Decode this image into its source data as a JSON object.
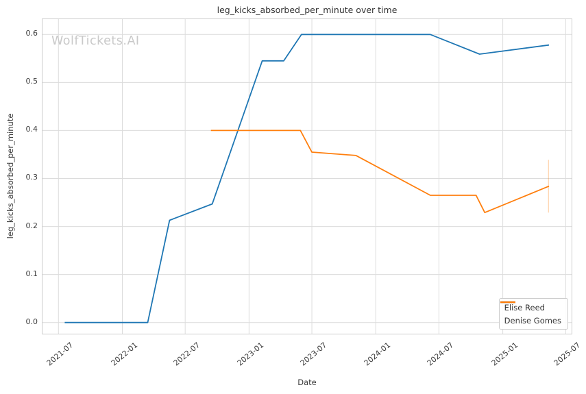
{
  "watermark": {
    "text": "WolfTickets.AI",
    "color": "#c9c9c9"
  },
  "colors": {
    "background": "#ffffff",
    "grid": "#dcdcdc",
    "spine": "#cccccc",
    "text": "#3b3b3b",
    "title": "#333333",
    "series_blue": "#1f77b4",
    "series_orange": "#ff7f0e"
  },
  "chart_data": {
    "type": "line",
    "title": "leg_kicks_absorbed_per_minute over time",
    "xlabel": "Date",
    "ylabel": "leg_kicks_absorbed_per_minute",
    "grid": true,
    "legend_position": "lower right",
    "xlim": [
      "2021-05-16",
      "2025-07-22"
    ],
    "ylim": [
      -0.026,
      0.632
    ],
    "xticks": [
      {
        "date": "2021-07-01",
        "label": "2021-07"
      },
      {
        "date": "2022-01-01",
        "label": "2022-01"
      },
      {
        "date": "2022-07-01",
        "label": "2022-07"
      },
      {
        "date": "2023-01-01",
        "label": "2023-01"
      },
      {
        "date": "2023-07-01",
        "label": "2023-07"
      },
      {
        "date": "2024-01-01",
        "label": "2024-01"
      },
      {
        "date": "2024-07-01",
        "label": "2024-07"
      },
      {
        "date": "2025-01-01",
        "label": "2025-01"
      },
      {
        "date": "2025-07-01",
        "label": "2025-07"
      }
    ],
    "yticks": [
      {
        "v": 0.0,
        "label": "0.0"
      },
      {
        "v": 0.1,
        "label": "0.1"
      },
      {
        "v": 0.2,
        "label": "0.2"
      },
      {
        "v": 0.3,
        "label": "0.3"
      },
      {
        "v": 0.4,
        "label": "0.4"
      },
      {
        "v": 0.5,
        "label": "0.5"
      },
      {
        "v": 0.6,
        "label": "0.6"
      }
    ],
    "series": [
      {
        "name": "Elise Reed",
        "color": "#1f77b4",
        "points": [
          {
            "date": "2021-07-19",
            "value": 0.0
          },
          {
            "date": "2022-03-15",
            "value": 0.0
          },
          {
            "date": "2022-05-17",
            "value": 0.213
          },
          {
            "date": "2022-09-17",
            "value": 0.247
          },
          {
            "date": "2023-02-08",
            "value": 0.545
          },
          {
            "date": "2023-04-11",
            "value": 0.545
          },
          {
            "date": "2023-06-01",
            "value": 0.6
          },
          {
            "date": "2024-06-06",
            "value": 0.6
          },
          {
            "date": "2024-10-26",
            "value": 0.559
          },
          {
            "date": "2025-05-14",
            "value": 0.578
          }
        ]
      },
      {
        "name": "Denise Gomes",
        "color": "#ff7f0e",
        "points": [
          {
            "date": "2022-09-13",
            "value": 0.4
          },
          {
            "date": "2023-05-29",
            "value": 0.4
          },
          {
            "date": "2023-07-01",
            "value": 0.355
          },
          {
            "date": "2023-11-05",
            "value": 0.348
          },
          {
            "date": "2024-06-06",
            "value": 0.265
          },
          {
            "date": "2024-10-16",
            "value": 0.265
          },
          {
            "date": "2024-11-10",
            "value": 0.229
          },
          {
            "date": "2025-05-14",
            "value": 0.284
          }
        ]
      }
    ],
    "annotations": [
      {
        "type": "vertical_segment",
        "series": "Denise Gomes",
        "color": "#ff7f0e",
        "opacity": 0.35,
        "date": "2025-05-14",
        "from": 0.229,
        "to": 0.339
      }
    ]
  }
}
